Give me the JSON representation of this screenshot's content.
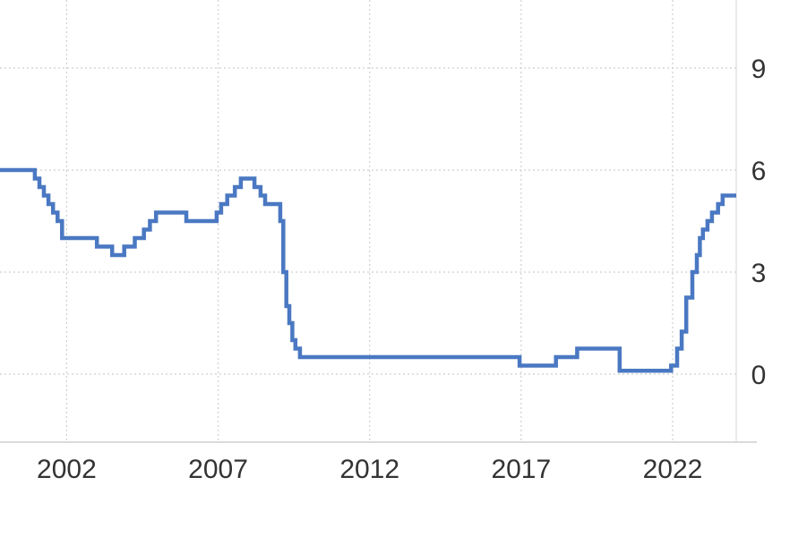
{
  "chart_data": {
    "type": "line",
    "line_shape": "step",
    "title": "",
    "xlabel": "",
    "ylabel": "",
    "grid": true,
    "y_axis_side": "right",
    "series_color": "#4a78c2",
    "x_ticks": [
      "2002",
      "2007",
      "2012",
      "2017",
      "2022"
    ],
    "y_ticks": [
      "0",
      "3",
      "6",
      "9"
    ],
    "xlim": [
      1999.8,
      2024.1
    ],
    "ylim": [
      -2.0,
      11.0
    ],
    "series": [
      {
        "x": [
          1999.8,
          2000.75,
          2000.95,
          2001.1,
          2001.25,
          2001.4,
          2001.55,
          2001.7,
          2001.85,
          2003.0,
          2003.5,
          2003.9,
          2004.25,
          2004.55,
          2004.75,
          2004.95,
          2005.15,
          2005.3,
          2005.95,
          2006.95,
          2007.1,
          2007.3,
          2007.45,
          2007.55,
          2007.75,
          2007.9,
          2008.2,
          2008.4,
          2008.55,
          2008.65,
          2009.05,
          2009.15,
          2009.25,
          2009.35,
          2009.45,
          2009.55,
          2009.7,
          2016.95,
          2017.7,
          2018.15,
          2018.85,
          2020.25,
          2021.95,
          2022.15,
          2022.3,
          2022.45,
          2022.65,
          2022.8,
          2022.9,
          2023.0,
          2023.15,
          2023.3,
          2023.5,
          2023.65,
          2024.1
        ],
        "values": [
          6.0,
          6.0,
          5.75,
          5.5,
          5.25,
          5.0,
          4.75,
          4.5,
          4.0,
          3.75,
          3.5,
          3.75,
          4.0,
          4.25,
          4.5,
          4.75,
          4.75,
          4.75,
          4.5,
          4.75,
          5.0,
          5.25,
          5.25,
          5.5,
          5.75,
          5.75,
          5.5,
          5.25,
          5.0,
          5.0,
          4.5,
          3.0,
          2.0,
          1.5,
          1.0,
          0.75,
          0.5,
          0.25,
          0.25,
          0.5,
          0.75,
          0.1,
          0.25,
          0.75,
          1.25,
          2.25,
          3.0,
          3.5,
          4.0,
          4.25,
          4.5,
          4.75,
          5.0,
          5.25,
          5.25
        ]
      }
    ]
  }
}
